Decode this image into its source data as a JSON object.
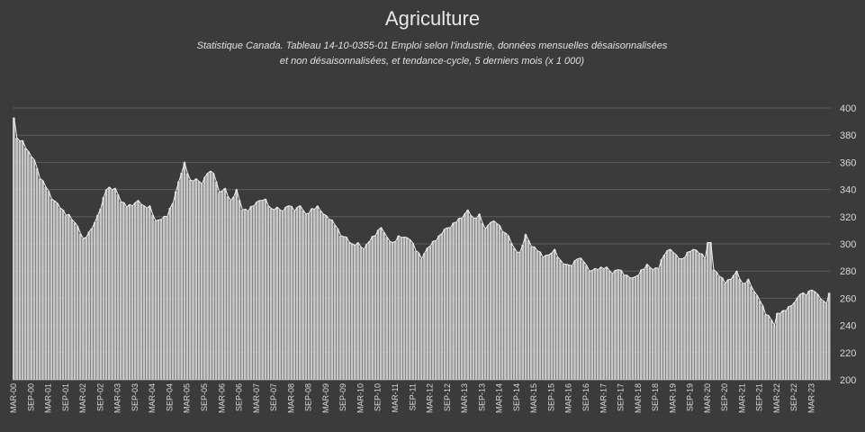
{
  "chart_data": {
    "type": "bar",
    "title": "Agriculture",
    "subtitle_line1": "Statistique Canada. Tableau 14-10-0355-01  Emploi selon l'industrie, données mensuelles désaisonnalisées",
    "subtitle_line2": "et non désaisonnalisées, et tendance-cycle, 5 derniers mois (x 1 000)",
    "ylim": [
      200,
      400
    ],
    "yticks": [
      200,
      220,
      240,
      260,
      280,
      300,
      320,
      340,
      360,
      380,
      400
    ],
    "grid": true,
    "start": "2000-03",
    "xtick_labels": [
      "MAR-00",
      "SEP-00",
      "MAR-01",
      "SEP-01",
      "MAR-02",
      "SEP-02",
      "MAR-03",
      "SEP-03",
      "MAR-04",
      "SEP-04",
      "MAR-05",
      "SEP-05",
      "MAR-06",
      "SEP-06",
      "MAR-07",
      "SEP-07",
      "MAR-08",
      "SEP-08",
      "MAR-09",
      "SEP-09",
      "MAR-10",
      "SEP-10",
      "MAR-11",
      "SEP-11",
      "MAR-12",
      "SEP-12",
      "MAR-13",
      "SEP-13",
      "MAR-14",
      "SEP-14",
      "MAR-15",
      "SEP-15",
      "MAR-16",
      "SEP-16",
      "MAR-17",
      "SEP-17",
      "MAR-18",
      "SEP-18",
      "MAR-19",
      "SEP-19",
      "MAR-20",
      "SEP-20",
      "MAR-21",
      "SEP-21",
      "MAR-22",
      "SEP-22",
      "MAR-23"
    ],
    "anchors": [
      [
        "2000-03",
        393
      ],
      [
        "2000-04",
        378
      ],
      [
        "2000-06",
        376
      ],
      [
        "2000-08",
        368
      ],
      [
        "2000-10",
        362
      ],
      [
        "2000-12",
        348
      ],
      [
        "2001-02",
        342
      ],
      [
        "2001-04",
        333
      ],
      [
        "2001-06",
        330
      ],
      [
        "2001-08",
        325
      ],
      [
        "2001-11",
        318
      ],
      [
        "2002-01",
        313
      ],
      [
        "2002-03",
        304
      ],
      [
        "2002-05",
        309
      ],
      [
        "2002-07",
        316
      ],
      [
        "2002-09",
        326
      ],
      [
        "2002-11",
        340
      ],
      [
        "2003-02",
        341
      ],
      [
        "2003-04",
        331
      ],
      [
        "2003-06",
        327
      ],
      [
        "2003-08",
        328
      ],
      [
        "2003-10",
        332
      ],
      [
        "2003-12",
        328
      ],
      [
        "2004-02",
        328
      ],
      [
        "2004-04",
        317
      ],
      [
        "2004-06",
        318
      ],
      [
        "2004-08",
        320
      ],
      [
        "2004-10",
        330
      ],
      [
        "2004-12",
        346
      ],
      [
        "2005-02",
        360
      ],
      [
        "2005-04",
        347
      ],
      [
        "2005-06",
        348
      ],
      [
        "2005-08",
        344
      ],
      [
        "2005-10",
        352
      ],
      [
        "2005-12",
        352
      ],
      [
        "2006-02",
        338
      ],
      [
        "2006-04",
        341
      ],
      [
        "2006-06",
        332
      ],
      [
        "2006-08",
        340
      ],
      [
        "2006-10",
        325
      ],
      [
        "2006-12",
        324
      ],
      [
        "2007-02",
        328
      ],
      [
        "2007-04",
        332
      ],
      [
        "2007-06",
        333
      ],
      [
        "2007-08",
        326
      ],
      [
        "2007-10",
        327
      ],
      [
        "2007-12",
        324
      ],
      [
        "2008-02",
        328
      ],
      [
        "2008-04",
        324
      ],
      [
        "2008-06",
        328
      ],
      [
        "2008-08",
        322
      ],
      [
        "2008-10",
        326
      ],
      [
        "2008-12",
        328
      ],
      [
        "2009-02",
        322
      ],
      [
        "2009-04",
        318
      ],
      [
        "2009-06",
        314
      ],
      [
        "2009-08",
        306
      ],
      [
        "2009-10",
        305
      ],
      [
        "2009-12",
        300
      ],
      [
        "2010-02",
        301
      ],
      [
        "2010-04",
        296
      ],
      [
        "2010-06",
        302
      ],
      [
        "2010-08",
        306
      ],
      [
        "2010-10",
        312
      ],
      [
        "2010-12",
        305
      ],
      [
        "2011-02",
        301
      ],
      [
        "2011-04",
        306
      ],
      [
        "2011-06",
        305
      ],
      [
        "2011-08",
        303
      ],
      [
        "2011-10",
        295
      ],
      [
        "2011-12",
        289
      ],
      [
        "2012-02",
        297
      ],
      [
        "2012-04",
        302
      ],
      [
        "2012-06",
        306
      ],
      [
        "2012-08",
        311
      ],
      [
        "2012-10",
        312
      ],
      [
        "2012-12",
        316
      ],
      [
        "2013-02",
        319
      ],
      [
        "2013-04",
        325
      ],
      [
        "2013-06",
        319
      ],
      [
        "2013-08",
        322
      ],
      [
        "2013-10",
        311
      ],
      [
        "2013-12",
        316
      ],
      [
        "2014-02",
        315
      ],
      [
        "2014-04",
        309
      ],
      [
        "2014-06",
        306
      ],
      [
        "2014-08",
        297
      ],
      [
        "2014-10",
        294
      ],
      [
        "2014-12",
        307
      ],
      [
        "2015-02",
        298
      ],
      [
        "2015-04",
        295
      ],
      [
        "2015-06",
        290
      ],
      [
        "2015-08",
        292
      ],
      [
        "2015-10",
        296
      ],
      [
        "2015-12",
        288
      ],
      [
        "2016-02",
        285
      ],
      [
        "2016-04",
        284
      ],
      [
        "2016-06",
        289
      ],
      [
        "2016-08",
        287
      ],
      [
        "2016-10",
        280
      ],
      [
        "2016-12",
        282
      ],
      [
        "2017-02",
        283
      ],
      [
        "2017-04",
        283
      ],
      [
        "2017-06",
        278
      ],
      [
        "2017-08",
        281
      ],
      [
        "2017-10",
        277
      ],
      [
        "2017-12",
        275
      ],
      [
        "2018-02",
        276
      ],
      [
        "2018-04",
        281
      ],
      [
        "2018-06",
        285
      ],
      [
        "2018-08",
        281
      ],
      [
        "2018-10",
        282
      ],
      [
        "2018-12",
        292
      ],
      [
        "2019-02",
        296
      ],
      [
        "2019-04",
        292
      ],
      [
        "2019-06",
        289
      ],
      [
        "2019-08",
        294
      ],
      [
        "2019-10",
        296
      ],
      [
        "2019-12",
        293
      ],
      [
        "2020-02",
        289
      ],
      [
        "2020-03",
        301
      ],
      [
        "2020-04",
        301
      ],
      [
        "2020-05",
        281
      ],
      [
        "2020-07",
        276
      ],
      [
        "2020-09",
        271
      ],
      [
        "2020-11",
        274
      ],
      [
        "2021-01",
        280
      ],
      [
        "2021-03",
        271
      ],
      [
        "2021-05",
        274
      ],
      [
        "2021-07",
        265
      ],
      [
        "2021-09",
        258
      ],
      [
        "2021-11",
        248
      ],
      [
        "2022-01",
        244
      ],
      [
        "2022-02",
        240
      ],
      [
        "2022-03",
        249
      ],
      [
        "2022-05",
        251
      ],
      [
        "2022-07",
        254
      ],
      [
        "2022-09",
        257
      ],
      [
        "2022-11",
        263
      ],
      [
        "2023-01",
        262
      ],
      [
        "2023-03",
        266
      ],
      [
        "2023-05",
        263
      ],
      [
        "2023-07",
        258
      ],
      [
        "2023-08",
        256
      ],
      [
        "2023-09",
        264
      ]
    ]
  }
}
